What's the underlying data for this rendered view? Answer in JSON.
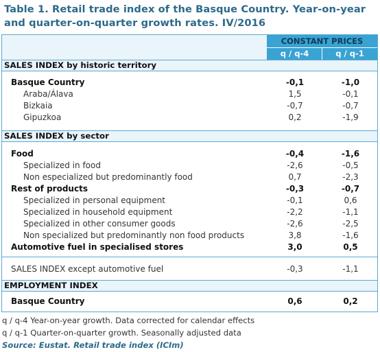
{
  "title": "Table 1. Retail trade index of the Basque Country. Year-on-year and quarter-on-quarter growth rates. IV/2016",
  "header": {
    "group": "CONSTANT PRICES",
    "col1": "q / q-4",
    "col2": "q / q-1"
  },
  "sections": {
    "territory": "SALES INDEX by historic territory",
    "sector": "SALES INDEX by sector",
    "employment": "EMPLOYMENT INDEX"
  },
  "territory_rows": [
    {
      "label": "Basque Country",
      "v1": "-0,1",
      "v2": "-1,0"
    },
    {
      "label": "Araba/Álava",
      "v1": "1,5",
      "v2": "-0,1"
    },
    {
      "label": "Bizkaia",
      "v1": "-0,7",
      "v2": "-0,7"
    },
    {
      "label": "Gipuzkoa",
      "v1": "0,2",
      "v2": "-1,9"
    }
  ],
  "sector_rows": [
    {
      "label": "Food",
      "v1": "-0,4",
      "v2": "-1,6"
    },
    {
      "label": "Specialized in food",
      "v1": "-2,6",
      "v2": "-0,5"
    },
    {
      "label": "Non especialized but predominantly food",
      "v1": "0,7",
      "v2": "-2,3"
    },
    {
      "label": "Rest of products",
      "v1": "-0,3",
      "v2": "-0,7"
    },
    {
      "label": "Specialized in personal equipment",
      "v1": "-0,1",
      "v2": "0,6"
    },
    {
      "label": "Specialized in household equipment",
      "v1": "-2,2",
      "v2": "-1,1"
    },
    {
      "label": "Specialized in other consumer goods",
      "v1": "-2,6",
      "v2": "-2,5"
    },
    {
      "label": "Non specialized but predominantly non food products",
      "v1": "3,8",
      "v2": "-1,6"
    },
    {
      "label": "Automotive fuel in specialised stores",
      "v1": "3,0",
      "v2": "0,5"
    }
  ],
  "except_row": {
    "label": "SALES INDEX except automotive fuel",
    "v1": "-0,3",
    "v2": "-1,1"
  },
  "employment_row": {
    "label": "Basque Country",
    "v1": "0,6",
    "v2": "0,2"
  },
  "notes": {
    "n1": "q / q-4 Year-on-year growth. Data corrected for calendar effects",
    "n2": "q / q-1 Quarter-on-quarter growth. Seasonally adjusted data",
    "source": "Source: Eustat. Retail trade index (ICIm)"
  }
}
